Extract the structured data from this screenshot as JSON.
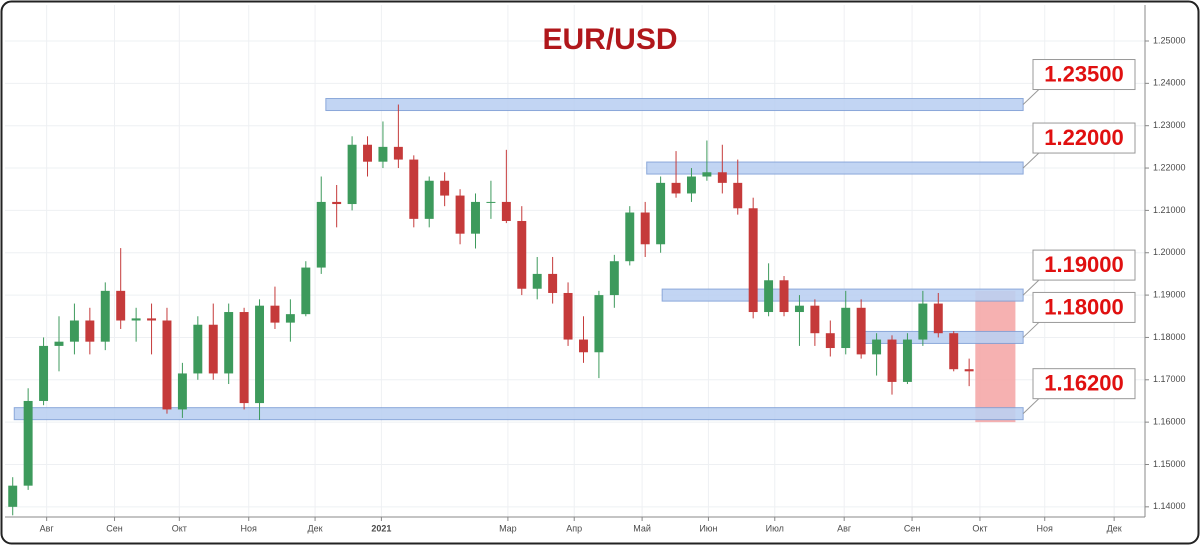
{
  "chart_data": {
    "type": "candlestick",
    "title": "EUR/USD",
    "title_color": "#b0171b",
    "up_color": "#3d9a5c",
    "down_color": "#c53a3a",
    "grid": true,
    "open": [
      1.14,
      1.145,
      1.165,
      1.178,
      1.179,
      1.184,
      1.179,
      1.191,
      1.184,
      1.1845,
      1.184,
      1.163,
      1.1715,
      1.183,
      1.1715,
      1.186,
      1.1645,
      1.1875,
      1.1835,
      1.1855,
      1.1965,
      1.212,
      1.2115,
      1.2255,
      1.2215,
      1.225,
      1.222,
      1.208,
      1.217,
      1.2135,
      1.2045,
      1.212,
      1.212,
      1.2075,
      1.1915,
      1.195,
      1.1905,
      1.1795,
      1.1765,
      1.19,
      1.198,
      1.2095,
      1.202,
      1.2165,
      1.214,
      1.218,
      1.219,
      1.2165,
      1.2105,
      1.186,
      1.1935,
      1.186,
      1.1875,
      1.181,
      1.1775,
      1.187,
      1.176,
      1.1795,
      1.1695,
      1.1795,
      1.188,
      1.181,
      1.1725
    ],
    "high": [
      1.147,
      1.168,
      1.18,
      1.185,
      1.188,
      1.187,
      1.193,
      1.2011,
      1.187,
      1.188,
      1.187,
      1.174,
      1.185,
      1.188,
      1.188,
      1.187,
      1.189,
      1.192,
      1.189,
      1.198,
      1.218,
      1.216,
      1.2275,
      1.2275,
      1.231,
      1.235,
      1.223,
      1.218,
      1.219,
      1.215,
      1.214,
      1.217,
      1.2243,
      1.211,
      1.199,
      1.199,
      1.193,
      1.185,
      1.191,
      1.1995,
      1.211,
      1.212,
      1.218,
      1.224,
      1.22,
      1.2265,
      1.2255,
      1.222,
      1.213,
      1.1975,
      1.1945,
      1.19,
      1.189,
      1.184,
      1.191,
      1.189,
      1.181,
      1.1805,
      1.181,
      1.191,
      1.1905,
      1.1815,
      1.175
    ],
    "low": [
      1.138,
      1.144,
      1.164,
      1.172,
      1.176,
      1.176,
      1.177,
      1.182,
      1.179,
      1.176,
      1.162,
      1.161,
      1.17,
      1.17,
      1.169,
      1.163,
      1.1605,
      1.182,
      1.179,
      1.185,
      1.195,
      1.206,
      1.21,
      1.218,
      1.22,
      1.22,
      1.206,
      1.206,
      1.211,
      1.202,
      1.201,
      1.208,
      1.207,
      1.19,
      1.189,
      1.188,
      1.178,
      1.174,
      1.1704,
      1.187,
      1.197,
      1.199,
      1.2,
      1.213,
      1.212,
      1.217,
      1.214,
      1.209,
      1.1845,
      1.185,
      1.185,
      1.178,
      1.178,
      1.1755,
      1.176,
      1.175,
      1.171,
      1.1665,
      1.169,
      1.178,
      1.18,
      1.172,
      1.1685
    ],
    "close": [
      1.145,
      1.165,
      1.178,
      1.179,
      1.184,
      1.179,
      1.191,
      1.184,
      1.1845,
      1.184,
      1.163,
      1.1715,
      1.183,
      1.1715,
      1.186,
      1.1645,
      1.1875,
      1.1835,
      1.1855,
      1.1965,
      1.212,
      1.2115,
      1.2255,
      1.2215,
      1.225,
      1.222,
      1.208,
      1.217,
      1.2135,
      1.2045,
      1.212,
      1.212,
      1.2075,
      1.1915,
      1.195,
      1.1905,
      1.1795,
      1.1765,
      1.19,
      1.198,
      1.2095,
      1.202,
      1.2165,
      1.214,
      1.218,
      1.219,
      1.2165,
      1.2105,
      1.186,
      1.1935,
      1.186,
      1.1875,
      1.181,
      1.1775,
      1.187,
      1.176,
      1.1795,
      1.1695,
      1.1795,
      1.188,
      1.181,
      1.1725,
      1.172
    ],
    "xlim": [
      -0.5,
      73.4
    ],
    "xticks": [
      {
        "value": 2.2,
        "label": "Авг"
      },
      {
        "value": 6.6,
        "label": "Сен"
      },
      {
        "value": 10.8,
        "label": "Окт"
      },
      {
        "value": 15.3,
        "label": "Ноя"
      },
      {
        "value": 19.6,
        "label": "Дек"
      },
      {
        "value": 23.9,
        "label": "2021"
      },
      {
        "value": 32.1,
        "label": "Мар"
      },
      {
        "value": 36.4,
        "label": "Апр"
      },
      {
        "value": 40.8,
        "label": "Май"
      },
      {
        "value": 45.1,
        "label": "Июн"
      },
      {
        "value": 49.4,
        "label": "Июл"
      },
      {
        "value": 53.9,
        "label": "Авг"
      },
      {
        "value": 58.3,
        "label": "Сен"
      },
      {
        "value": 62.7,
        "label": "Окт"
      },
      {
        "value": 66.9,
        "label": "Ноя"
      },
      {
        "value": 71.4,
        "label": "Дек"
      }
    ],
    "ylim": [
      1.1376,
      1.2585
    ],
    "yticks": [
      {
        "value": 1.14,
        "label": "1.14000"
      },
      {
        "value": 1.15,
        "label": "1.15000"
      },
      {
        "value": 1.16,
        "label": "1.16000"
      },
      {
        "value": 1.17,
        "label": "1.17000"
      },
      {
        "value": 1.18,
        "label": "1.18000"
      },
      {
        "value": 1.19,
        "label": "1.19000"
      },
      {
        "value": 1.2,
        "label": "1.20000"
      },
      {
        "value": 1.21,
        "label": "1.21000"
      },
      {
        "value": 1.22,
        "label": "1.22000"
      },
      {
        "value": 1.23,
        "label": "1.23000"
      },
      {
        "value": 1.24,
        "label": "1.24000"
      },
      {
        "value": 1.25,
        "label": "1.25000"
      }
    ],
    "level_color": "#bcd1f2",
    "levels_end": 65.5,
    "levels": [
      {
        "value": 1.235,
        "label": "1.23500",
        "start": 20.3
      },
      {
        "value": 1.22,
        "label": "1.22000",
        "start": 41.1
      },
      {
        "value": 1.19,
        "label": "1.19000",
        "start": 42.1
      },
      {
        "value": 1.18,
        "label": "1.18000",
        "start": 55.1
      },
      {
        "value": 1.162,
        "label": "1.16200",
        "start": 0.1
      }
    ],
    "highlight": {
      "from": 62.4,
      "to": 65.0,
      "low": 1.16,
      "high": 1.191,
      "color": "#f4a3a3"
    }
  }
}
